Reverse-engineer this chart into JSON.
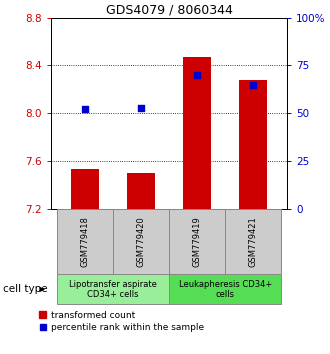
{
  "title": "GDS4079 / 8060344",
  "samples": [
    "GSM779418",
    "GSM779420",
    "GSM779419",
    "GSM779421"
  ],
  "transformed_counts": [
    7.53,
    7.5,
    8.47,
    8.28
  ],
  "percentile_ranks": [
    52,
    53,
    70,
    65
  ],
  "ylim_left": [
    7.2,
    8.8
  ],
  "ylim_right": [
    0,
    100
  ],
  "yticks_left": [
    7.2,
    7.6,
    8.0,
    8.4,
    8.8
  ],
  "yticks_right": [
    0,
    25,
    50,
    75,
    100
  ],
  "ytick_labels_right": [
    "0",
    "25",
    "50",
    "75",
    "100%"
  ],
  "bar_color": "#cc0000",
  "dot_color": "#0000cc",
  "bar_baseline": 7.2,
  "cell_types": [
    {
      "label": "Lipotransfer aspirate\nCD34+ cells",
      "color": "#99ee99"
    },
    {
      "label": "Leukapheresis CD34+\ncells",
      "color": "#55dd55"
    }
  ],
  "legend_bar_label": "transformed count",
  "legend_dot_label": "percentile rank within the sample",
  "cell_type_label": "cell type",
  "xticklabel_bg": "#cccccc",
  "title_fontsize": 9,
  "axis_fontsize": 7.5,
  "sample_fontsize": 6,
  "celltype_fontsize": 6
}
